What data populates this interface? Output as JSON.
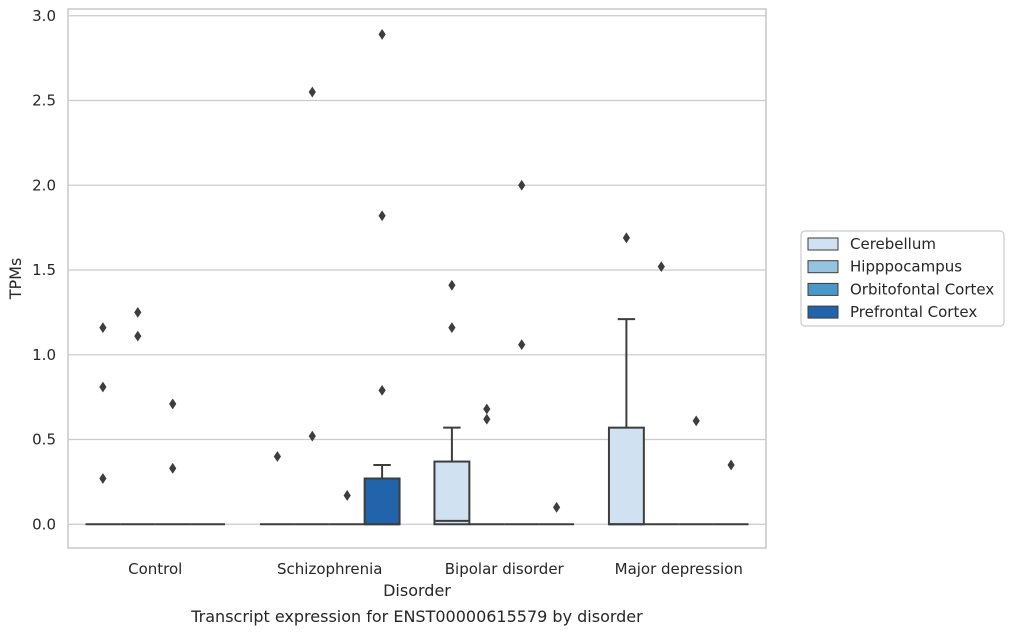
{
  "chart_data": {
    "type": "box",
    "caption": "Transcript expression for ENST00000615579 by disorder",
    "xlabel": "Disorder",
    "ylabel": "TPMs",
    "ylim": [
      -0.14,
      3.04
    ],
    "yticks": [
      0.0,
      0.5,
      1.0,
      1.5,
      2.0,
      2.5,
      3.0
    ],
    "ytick_labels": [
      "0.0",
      "0.5",
      "1.0",
      "1.5",
      "2.0",
      "2.5",
      "3.0"
    ],
    "grid": "horizontal",
    "legend_position": "right",
    "categories": [
      "Control",
      "Schizophrenia",
      "Bipolar disorder",
      "Major depression"
    ],
    "series": [
      {
        "name": "Cerebellum",
        "color": "#d0e1f2",
        "boxes": [
          {
            "q1": 0,
            "median": 0,
            "q3": 0,
            "whislo": 0,
            "whishi": 0,
            "fliers": [
              0.27,
              0.81,
              1.16
            ]
          },
          {
            "q1": 0,
            "median": 0,
            "q3": 0,
            "whislo": 0,
            "whishi": 0,
            "fliers": [
              0.4
            ]
          },
          {
            "q1": 0,
            "median": 0.02,
            "q3": 0.37,
            "whislo": 0,
            "whishi": 0.57,
            "fliers": [
              1.16,
              1.41
            ]
          },
          {
            "q1": 0,
            "median": 0,
            "q3": 0.57,
            "whislo": 0,
            "whishi": 1.21,
            "fliers": [
              1.69
            ]
          }
        ]
      },
      {
        "name": "Hipppocampus",
        "color": "#94c4df",
        "boxes": [
          {
            "q1": 0,
            "median": 0,
            "q3": 0,
            "whislo": 0,
            "whishi": 0,
            "fliers": [
              1.11,
              1.25
            ]
          },
          {
            "q1": 0,
            "median": 0,
            "q3": 0,
            "whislo": 0,
            "whishi": 0,
            "fliers": [
              0.52,
              2.55
            ]
          },
          {
            "q1": 0,
            "median": 0,
            "q3": 0,
            "whislo": 0,
            "whishi": 0,
            "fliers": [
              0.62,
              0.68
            ]
          },
          {
            "q1": 0,
            "median": 0,
            "q3": 0,
            "whislo": 0,
            "whishi": 0,
            "fliers": [
              1.52
            ]
          }
        ]
      },
      {
        "name": "Orbitofontal Cortex",
        "color": "#4a98c9",
        "boxes": [
          {
            "q1": 0,
            "median": 0,
            "q3": 0,
            "whislo": 0,
            "whishi": 0,
            "fliers": [
              0.33,
              0.71
            ]
          },
          {
            "q1": 0,
            "median": 0,
            "q3": 0,
            "whislo": 0,
            "whishi": 0,
            "fliers": [
              0.17
            ]
          },
          {
            "q1": 0,
            "median": 0,
            "q3": 0,
            "whislo": 0,
            "whishi": 0,
            "fliers": [
              1.06,
              2.0
            ]
          },
          {
            "q1": 0,
            "median": 0,
            "q3": 0,
            "whislo": 0,
            "whishi": 0,
            "fliers": [
              0.61
            ]
          }
        ]
      },
      {
        "name": "Prefrontal Cortex",
        "color": "#2164ab",
        "boxes": [
          {
            "q1": 0,
            "median": 0,
            "q3": 0,
            "whislo": 0,
            "whishi": 0,
            "fliers": []
          },
          {
            "q1": 0,
            "median": 0,
            "q3": 0.27,
            "whislo": 0,
            "whishi": 0.35,
            "fliers": [
              0.79,
              1.82,
              2.89
            ]
          },
          {
            "q1": 0,
            "median": 0,
            "q3": 0,
            "whislo": 0,
            "whishi": 0,
            "fliers": [
              0.1
            ]
          },
          {
            "q1": 0,
            "median": 0,
            "q3": 0,
            "whislo": 0,
            "whishi": 0,
            "fliers": [
              0.35
            ]
          }
        ]
      }
    ]
  },
  "colors": {
    "grid": "#cccccc",
    "frame": "#cccccc",
    "box_edge": "#3d3d3d",
    "flier": "#3d3d3d"
  }
}
